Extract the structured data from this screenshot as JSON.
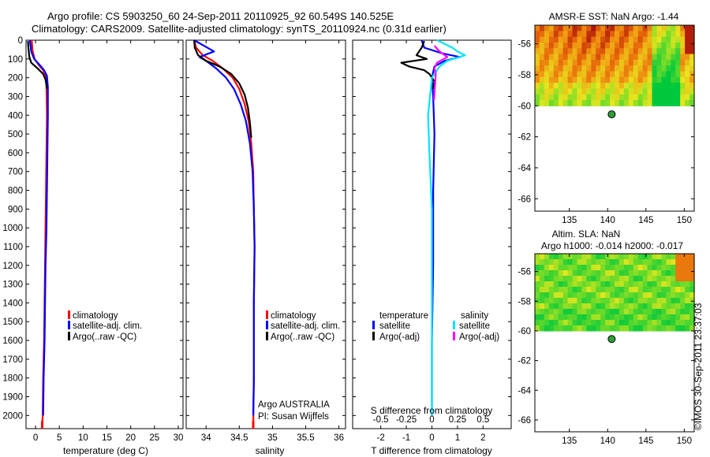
{
  "header": {
    "line1": "Argo profile: CS 5903250_60 24-Sep-2011 20110925_92 60.549S 140.525E",
    "line2": "Climatology: CARS2009. Satellite-adjusted climatology: synTS_20110924.nc (0.31d earlier)"
  },
  "credit": "©IMOS 30-Sep-2011 23:37:03",
  "colors": {
    "clim": "#ff0000",
    "sat": "#0000ff",
    "argo": "#000000",
    "sal_sat": "#00e5ff",
    "sal_argo": "#ff00ff"
  },
  "chart_data": [
    {
      "id": "temperature",
      "type": "line",
      "xlabel": "temperature (deg C)",
      "xlim": [
        -2,
        31
      ],
      "xticks": [
        "0",
        "5",
        "10",
        "15",
        "20",
        "25",
        "30"
      ],
      "xtick_values": [
        0,
        5,
        10,
        15,
        20,
        25,
        30
      ],
      "ylim": [
        0,
        2070
      ],
      "yticks": [
        "0",
        "100",
        "200",
        "300",
        "400",
        "500",
        "600",
        "700",
        "800",
        "900",
        "1000",
        "1100",
        "1200",
        "1300",
        "1400",
        "1500",
        "1600",
        "1700",
        "1800",
        "1900",
        "2000"
      ],
      "ytick_values": [
        0,
        100,
        200,
        300,
        400,
        500,
        600,
        700,
        800,
        900,
        1000,
        1100,
        1200,
        1300,
        1400,
        1500,
        1600,
        1700,
        1800,
        1900,
        2000
      ],
      "legend": [
        "climatology",
        "satellite-adj. clim.",
        "Argo(..raw -QC)"
      ],
      "series": [
        {
          "name": "climatology",
          "color_key": "clim",
          "x": [
            -0.8,
            -0.6,
            -0.2,
            0.6,
            1.6,
            2.2,
            2.3,
            2.4,
            2.3,
            2.2,
            2.1,
            2.0,
            1.9,
            1.8,
            1.6,
            1.5,
            1.4
          ],
          "y": [
            0,
            60,
            100,
            130,
            160,
            190,
            250,
            400,
            600,
            800,
            1000,
            1200,
            1400,
            1600,
            1800,
            2000,
            2070
          ]
        },
        {
          "name": "satellite-adj. clim.",
          "color_key": "sat",
          "x": [
            -1.2,
            -0.9,
            -0.3,
            0.8,
            1.8,
            2.4,
            2.6,
            2.6,
            2.5,
            2.4,
            2.3,
            2.1,
            2.0,
            1.9,
            1.7,
            1.6
          ],
          "y": [
            0,
            60,
            100,
            130,
            160,
            190,
            250,
            400,
            600,
            800,
            1000,
            1200,
            1400,
            1600,
            1800,
            2000
          ]
        },
        {
          "name": "Argo(..raw -QC)",
          "color_key": "argo",
          "x": [
            -1.6,
            -1.5,
            -1.3,
            -0.9,
            0.4,
            1.6,
            2.1,
            2.3,
            2.4
          ],
          "y": [
            5,
            40,
            90,
            120,
            150,
            180,
            210,
            240,
            260
          ]
        }
      ]
    },
    {
      "id": "salinity",
      "type": "line",
      "xlabel": "salinity",
      "xlim": [
        33.7,
        36.1
      ],
      "xticks": [
        "34",
        "34.5",
        "35",
        "35.5",
        "36"
      ],
      "xtick_values": [
        34,
        34.5,
        35,
        35.5,
        36
      ],
      "ylim": [
        0,
        2070
      ],
      "legend": [
        "climatology",
        "satellite-adj. clim.",
        "Argo(..raw -QC)"
      ],
      "annotation": [
        "Argo AUSTRALIA",
        "PI: Susan Wijffels"
      ],
      "series": [
        {
          "name": "climatology",
          "color_key": "clim",
          "x": [
            33.82,
            33.85,
            33.95,
            34.1,
            34.25,
            34.4,
            34.5,
            34.58,
            34.64,
            34.68,
            34.71,
            34.72,
            34.73,
            34.72,
            34.72,
            34.71
          ],
          "y": [
            0,
            40,
            80,
            110,
            150,
            200,
            260,
            340,
            430,
            550,
            700,
            900,
            1100,
            1400,
            1800,
            2070
          ]
        },
        {
          "name": "satellite-adj. clim.",
          "color_key": "sat",
          "x": [
            33.82,
            34.12,
            33.9,
            34.0,
            34.15,
            34.3,
            34.42,
            34.52,
            34.6,
            34.66,
            34.7,
            34.72,
            34.73,
            34.72,
            34.72,
            34.71
          ],
          "y": [
            0,
            60,
            90,
            110,
            150,
            200,
            260,
            340,
            430,
            550,
            700,
            900,
            1100,
            1400,
            1800,
            2000
          ]
        },
        {
          "name": "Argo(..raw -QC)",
          "color_key": "argo",
          "x": [
            33.82,
            33.83,
            33.88,
            34.0,
            34.2,
            34.38,
            34.5,
            34.58,
            34.63,
            34.66,
            34.68
          ],
          "y": [
            0,
            40,
            80,
            110,
            140,
            180,
            230,
            290,
            360,
            440,
            520
          ]
        }
      ]
    },
    {
      "id": "difference",
      "type": "line",
      "xlabel": "T difference from climatology",
      "xlabel2": "S difference from climatology",
      "xlim": [
        -3.1,
        3.1
      ],
      "xticks": [
        "-2",
        "-1",
        "0",
        "1",
        "2"
      ],
      "xtick_values": [
        -2,
        -1,
        0,
        1,
        2
      ],
      "sticks": [
        "-0.5",
        "-0.25",
        "0",
        "0.25",
        "0.5"
      ],
      "stick_values": [
        -2,
        -1,
        0,
        1,
        2
      ],
      "ylim": [
        0,
        2070
      ],
      "legend_t_title": "temperature",
      "legend_s_title": "salinity",
      "legend_t": [
        "satellite",
        "Argo(-adj)"
      ],
      "legend_s": [
        "satellite",
        "Argo(-adj)"
      ],
      "series": [
        {
          "name": "T satellite",
          "color_key": "sat",
          "x": [
            -0.4,
            -0.3,
            0.4,
            1.1,
            0.5,
            0.1,
            0.0,
            0.05,
            0.1,
            0.05,
            0.05,
            0.0,
            0.0
          ],
          "y": [
            0,
            40,
            70,
            90,
            110,
            140,
            200,
            300,
            500,
            800,
            1200,
            1600,
            2000
          ]
        },
        {
          "name": "T Argo(-adj)",
          "color_key": "argo",
          "x": [
            -0.3,
            -0.4,
            -0.6,
            -0.2,
            -1.2,
            -0.9,
            -0.3,
            -0.1,
            0.1,
            0.05
          ],
          "y": [
            5,
            40,
            80,
            100,
            120,
            140,
            160,
            180,
            220,
            260
          ]
        },
        {
          "name": "S satellite",
          "color_key": "sal_sat",
          "x": [
            0.2,
            0.8,
            1.0,
            1.3,
            0.6,
            0.3,
            0.0,
            -0.15,
            -0.1,
            0.0,
            0.0,
            0.0
          ],
          "y": [
            0,
            40,
            60,
            80,
            110,
            140,
            200,
            400,
            600,
            900,
            1400,
            2000
          ]
        },
        {
          "name": "S Argo(-adj)",
          "color_key": "sal_argo",
          "x": [
            0.1,
            0.3,
            0.6,
            0.2,
            0.1,
            0.15,
            0.12,
            0.08
          ],
          "y": [
            30,
            60,
            90,
            120,
            150,
            180,
            240,
            320
          ]
        }
      ]
    },
    {
      "id": "sst_map",
      "type": "heatmap",
      "title": "AMSR-E SST: NaN Argo: -1.44",
      "xlim": [
        130.5,
        151.3
      ],
      "xticks": [
        "135",
        "140",
        "145",
        "150"
      ],
      "xtick_values": [
        135,
        140,
        145,
        150
      ],
      "ylim": [
        -66.8,
        -54.8
      ],
      "yticks": [
        "-56",
        "-58",
        "-60",
        "-62",
        "-64",
        "-66"
      ],
      "ytick_values": [
        -56,
        -58,
        -60,
        -62,
        -64,
        -66
      ],
      "data_lat_range": [
        -60,
        -54.8
      ],
      "float_position": {
        "lon": 140.525,
        "lat": -60.549
      }
    },
    {
      "id": "sla_map",
      "type": "heatmap",
      "title": "Altim. SLA: NaN",
      "subtitle": "Argo h1000: -0.014 h2000: -0.017",
      "xlim": [
        130.5,
        151.3
      ],
      "xticks": [
        "135",
        "140",
        "145",
        "150"
      ],
      "xtick_values": [
        135,
        140,
        145,
        150
      ],
      "ylim": [
        -66.8,
        -54.8
      ],
      "yticks": [
        "-56",
        "-58",
        "-60",
        "-62",
        "-64",
        "-66"
      ],
      "ytick_values": [
        -56,
        -58,
        -60,
        -62,
        -64,
        -66
      ],
      "data_lat_range": [
        -60,
        -54.8
      ],
      "float_position": {
        "lon": 140.525,
        "lat": -60.549
      }
    }
  ]
}
